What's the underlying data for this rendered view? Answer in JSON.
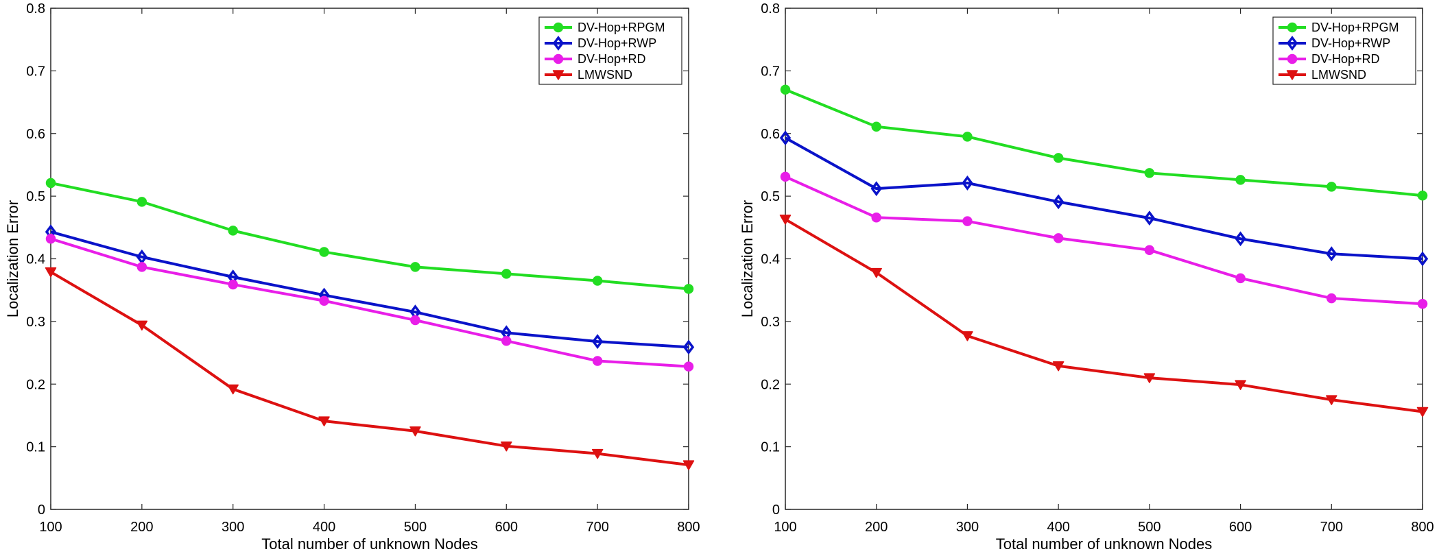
{
  "chart_data": [
    {
      "type": "line",
      "title": "",
      "xlabel": "Total number of unknown Nodes",
      "ylabel": "Localization Error",
      "xlim": [
        100,
        800
      ],
      "ylim": [
        0,
        0.8
      ],
      "xticks": [
        100,
        200,
        300,
        400,
        500,
        600,
        700,
        800
      ],
      "yticks": [
        0,
        0.1,
        0.2,
        0.3,
        0.4,
        0.5,
        0.6,
        0.7,
        0.8
      ],
      "ytick_labels": [
        "0",
        "0.1",
        "0.2",
        "0.3",
        "0.4",
        "0.5",
        "0.6",
        "0.7",
        "0.8"
      ],
      "legend_position": "top-right",
      "x": [
        100,
        200,
        300,
        400,
        500,
        600,
        700,
        800
      ],
      "series": [
        {
          "name": "DV-Hop+RPGM",
          "color": "#22dd22",
          "marker": "circle",
          "values": [
            0.521,
            0.491,
            0.445,
            0.411,
            0.387,
            0.376,
            0.365,
            0.352
          ]
        },
        {
          "name": "DV-Hop+RWP",
          "color": "#0a13c9",
          "marker": "diamond",
          "values": [
            0.443,
            0.403,
            0.371,
            0.342,
            0.315,
            0.282,
            0.268,
            0.259
          ]
        },
        {
          "name": "DV-Hop+RD",
          "color": "#e81ee8",
          "marker": "circle",
          "values": [
            0.432,
            0.387,
            0.359,
            0.333,
            0.302,
            0.269,
            0.237,
            0.228
          ]
        },
        {
          "name": "LMWSND",
          "color": "#dd1111",
          "marker": "triangle-down",
          "values": [
            0.379,
            0.294,
            0.192,
            0.141,
            0.125,
            0.101,
            0.089,
            0.071
          ]
        }
      ]
    },
    {
      "type": "line",
      "title": "",
      "xlabel": "Total number of unknown Nodes",
      "ylabel": "Localization Error",
      "xlim": [
        100,
        800
      ],
      "ylim": [
        0,
        0.8
      ],
      "xticks": [
        100,
        200,
        300,
        400,
        500,
        600,
        700,
        800
      ],
      "yticks": [
        0,
        0.1,
        0.2,
        0.3,
        0.4,
        0.5,
        0.6,
        0.7,
        0.8
      ],
      "ytick_labels": [
        "0",
        "0.1",
        "0.2",
        "0.3",
        "0.4",
        "0.5",
        "0.6",
        "0.7",
        "0.8"
      ],
      "legend_position": "top-right",
      "x": [
        100,
        200,
        300,
        400,
        500,
        600,
        700,
        800
      ],
      "series": [
        {
          "name": "DV-Hop+RPGM",
          "color": "#22dd22",
          "marker": "circle",
          "values": [
            0.67,
            0.611,
            0.595,
            0.561,
            0.537,
            0.526,
            0.515,
            0.501
          ]
        },
        {
          "name": "DV-Hop+RWP",
          "color": "#0a13c9",
          "marker": "diamond",
          "values": [
            0.593,
            0.512,
            0.521,
            0.491,
            0.465,
            0.432,
            0.408,
            0.4
          ]
        },
        {
          "name": "DV-Hop+RD",
          "color": "#e81ee8",
          "marker": "circle",
          "values": [
            0.531,
            0.466,
            0.46,
            0.433,
            0.414,
            0.369,
            0.337,
            0.328
          ]
        },
        {
          "name": "LMWSND",
          "color": "#dd1111",
          "marker": "triangle-down",
          "values": [
            0.463,
            0.378,
            0.277,
            0.229,
            0.21,
            0.199,
            0.175,
            0.156
          ]
        }
      ]
    }
  ]
}
